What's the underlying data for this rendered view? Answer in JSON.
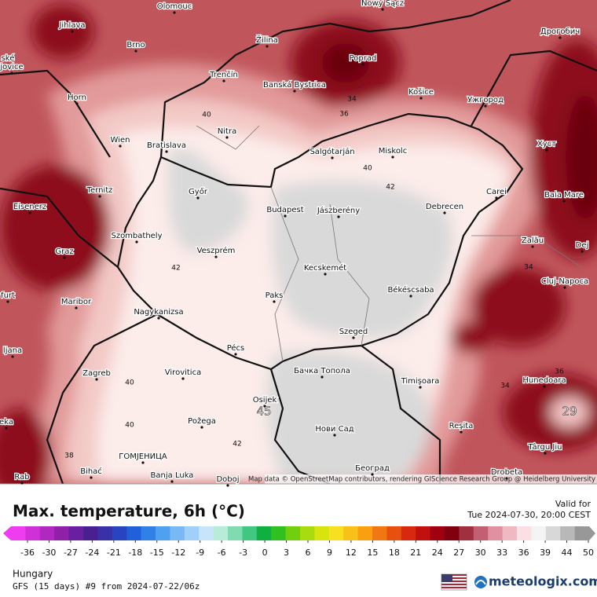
{
  "map": {
    "cities": [
      "Olomouc",
      "Nowy Sącz",
      "Jihlava",
      "Brno",
      "Žilina",
      "Poprad",
      "Дрогобич",
      "ské",
      "jovice",
      "Trenčín",
      "Banská Bystrica",
      "Horn",
      "Košice",
      "Ужгород",
      "Wien",
      "Bratislava",
      "Nitra",
      "Salgótarján",
      "Miskolc",
      "Хуст",
      "Ternitz",
      "Győr",
      "Eisenerz",
      "Budapest",
      "Jászberény",
      "Debrecen",
      "Carei",
      "Baia Mare",
      "Szombathely",
      "Graz",
      "Veszprém",
      "Zalău",
      "Dej",
      "Kecskemét",
      "Cluj-Napoca",
      "furt",
      "Maribor",
      "Paks",
      "Békéscsaba",
      "Nagykanizsa",
      "Szeged",
      "ljana",
      "Pécs",
      "Zagreb",
      "Virovitica",
      "Бачка Топола",
      "Timişoara",
      "Hunedoara",
      "Osijek",
      "Požega",
      "Нови Сад",
      "Reşita",
      "Târgu Jiu",
      "eka",
      "ГОМЈЕНИЦА",
      "Bihać",
      "Banja Luka",
      "Doboj",
      "Београд",
      "Drobeta",
      "Rab"
    ],
    "contour_labels": [
      40,
      36,
      34,
      40,
      42,
      42,
      34,
      36,
      34,
      40,
      40,
      42,
      38,
      45,
      29
    ],
    "attribution": "Map data © OpenStreetMap contributors, rendering GIScience Research Group @ Heidelberg University"
  },
  "header": {
    "title": "Max. temperature, 6h (°C)",
    "valid_label": "Valid for",
    "valid_time": "Tue 2024-07-30, 20:00 CEST"
  },
  "legend": {
    "ticks": [
      -36,
      -30,
      -27,
      -24,
      -21,
      -18,
      -15,
      -12,
      -9,
      -6,
      -3,
      0,
      3,
      6,
      9,
      12,
      15,
      18,
      21,
      24,
      27,
      30,
      33,
      36,
      39,
      44,
      50
    ]
  },
  "footer": {
    "region": "Hungary",
    "model": "GFS (15 days) #9 from  2024-07-22/06z",
    "brand": "meteologix.com"
  }
}
